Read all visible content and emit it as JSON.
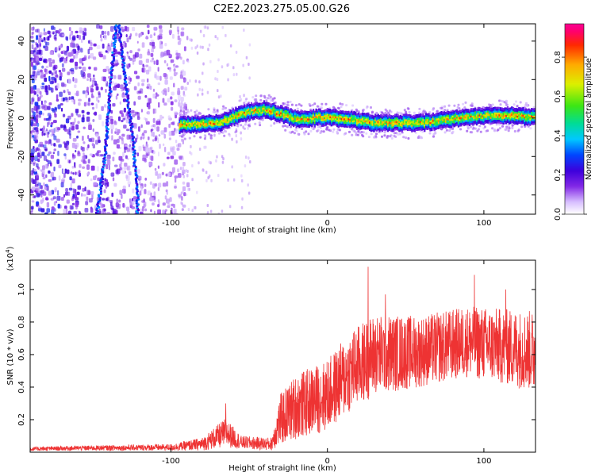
{
  "figure_title": "C2E2.2023.275.05.00.G26",
  "chart_data": [
    {
      "type": "heatmap",
      "xlabel": "Height of straight line (km)",
      "ylabel": "Frequency (Hz)",
      "xlim": [
        -190,
        133
      ],
      "ylim": [
        -50,
        49
      ],
      "xticks": [
        -100,
        0,
        100
      ],
      "yticks": [
        -40,
        -20,
        0,
        20,
        40
      ],
      "colorbar": {
        "label": "Normalized spectral amplitude",
        "range": [
          0,
          0.97
        ],
        "ticks": [
          0.0,
          0.2,
          0.4,
          0.6,
          0.8
        ],
        "tick_labels": [
          "0.0",
          "0.2",
          "0.4",
          "0.6",
          "0.8"
        ],
        "colormap": "rainbow (white-violet-blue-cyan-green-yellow-orange-red-magenta)"
      },
      "ridge": {
        "description": "narrow high-amplitude band near 0 Hz",
        "points": [
          [
            -90,
            -3
          ],
          [
            -70,
            -2
          ],
          [
            -50,
            4
          ],
          [
            -40,
            5
          ],
          [
            -20,
            0
          ],
          [
            0,
            1
          ],
          [
            30,
            -2
          ],
          [
            60,
            -2
          ],
          [
            90,
            1
          ],
          [
            110,
            2
          ],
          [
            133,
            1
          ]
        ],
        "typical_amplitude": 0.55
      },
      "streaks": [
        {
          "points": [
            [
              -148,
              -50
            ],
            [
              -143,
              -20
            ],
            [
              -140,
              10
            ],
            [
              -136,
              49
            ]
          ]
        },
        {
          "points": [
            [
              -122,
              -40
            ],
            [
              -125,
              -10
            ],
            [
              -130,
              20
            ],
            [
              -134,
              49
            ]
          ]
        }
      ]
    },
    {
      "type": "line",
      "xlabel": "Height of straight line (km)",
      "ylabel": "SNR (10 * v/v)",
      "y_scale_label": "(x10",
      "y_scale_exponent": "4",
      "y_scale_suffix": ")",
      "xlim": [
        -190,
        133
      ],
      "ylim": [
        0,
        1.18
      ],
      "xticks": [
        -100,
        0,
        100
      ],
      "yticks": [
        0.2,
        0.4,
        0.6,
        0.8,
        1.0
      ],
      "color": "#ee3333",
      "series_envelope": [
        {
          "x": -190,
          "mean": 0.02,
          "amp": 0.012
        },
        {
          "x": -160,
          "mean": 0.025,
          "amp": 0.015
        },
        {
          "x": -100,
          "mean": 0.03,
          "amp": 0.02
        },
        {
          "x": -80,
          "mean": 0.05,
          "amp": 0.04
        },
        {
          "x": -65,
          "mean": 0.12,
          "amp": 0.09
        },
        {
          "x": -55,
          "mean": 0.06,
          "amp": 0.04
        },
        {
          "x": -36,
          "mean": 0.05,
          "amp": 0.04
        },
        {
          "x": -30,
          "mean": 0.2,
          "amp": 0.16
        },
        {
          "x": -20,
          "mean": 0.28,
          "amp": 0.2
        },
        {
          "x": 0,
          "mean": 0.35,
          "amp": 0.22
        },
        {
          "x": 15,
          "mean": 0.5,
          "amp": 0.25
        },
        {
          "x": 30,
          "mean": 0.6,
          "amp": 0.25
        },
        {
          "x": 60,
          "mean": 0.62,
          "amp": 0.22
        },
        {
          "x": 90,
          "mean": 0.68,
          "amp": 0.22
        },
        {
          "x": 133,
          "mean": 0.62,
          "amp": 0.25
        }
      ],
      "peaks": [
        [
          -65,
          0.3
        ],
        [
          26,
          1.14
        ],
        [
          37,
          0.97
        ],
        [
          94,
          1.09
        ],
        [
          114,
          1.0
        ]
      ]
    }
  ]
}
